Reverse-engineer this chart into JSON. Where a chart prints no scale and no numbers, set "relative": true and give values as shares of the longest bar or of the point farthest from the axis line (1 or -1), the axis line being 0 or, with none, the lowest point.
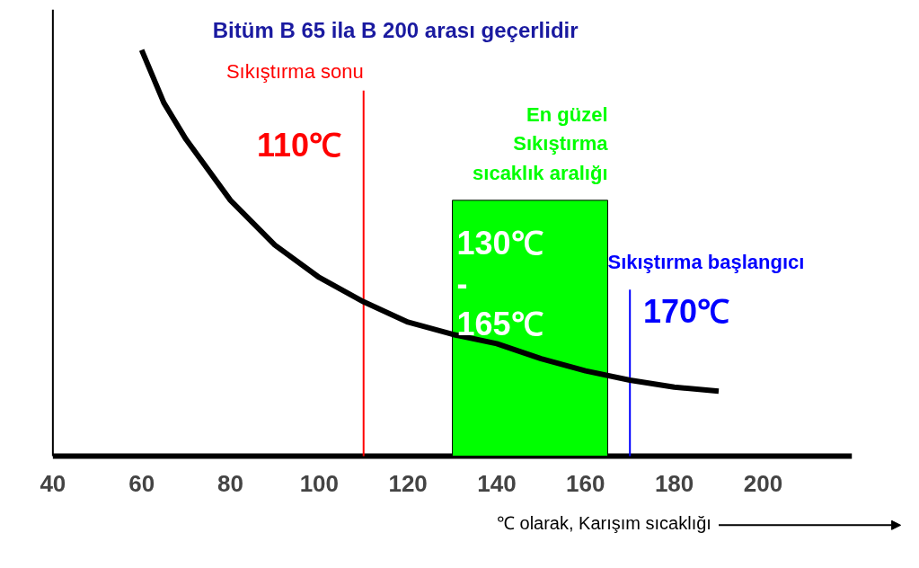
{
  "chart_data": {
    "type": "line",
    "title": "Bitüm B 65 ila B 200 arası geçerlidir",
    "xlabel": "℃ olarak, Karışım sıcaklığı",
    "relative": true,
    "x": [
      60,
      65,
      70,
      80,
      90,
      100,
      110,
      120,
      130,
      140,
      150,
      160,
      170,
      180,
      190
    ],
    "series": [
      {
        "color": "#000000",
        "values": [
          1,
          0.87,
          0.78,
          0.63,
          0.52,
          0.44,
          0.38,
          0.33,
          0.3,
          0.277,
          0.24,
          0.21,
          0.187,
          0.17,
          0.16
        ]
      }
    ],
    "xlim": [
      40,
      220
    ],
    "xticks": [
      40,
      60,
      80,
      100,
      120,
      140,
      160,
      180,
      200
    ],
    "ref_lines": [
      {
        "axis": "x",
        "value": 110,
        "label": "Sıkıştırma sonu",
        "color": "#ff0000"
      },
      {
        "axis": "x",
        "value": 170,
        "label": "Sıkıştırma başlangıcı",
        "color": "#0000ff"
      }
    ],
    "bands": [
      {
        "axis": "x",
        "from": 130,
        "to": 165,
        "label": "En güzel\nSıkıştırma\nsıcaklık aralığı",
        "color": "#00ff00"
      }
    ],
    "annotations": [
      "110℃",
      "170℃",
      "130℃\n-\n165℃"
    ],
    "grid": false,
    "marker": "none",
    "line_style": "solid"
  }
}
